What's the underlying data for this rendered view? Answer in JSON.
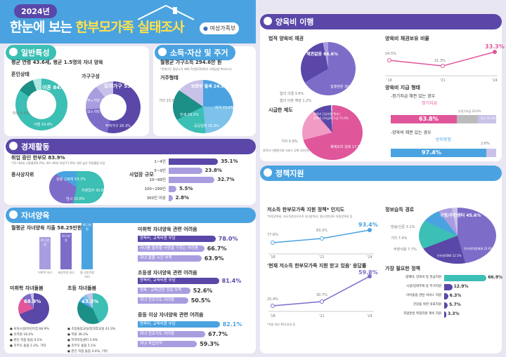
{
  "header": {
    "year": "2024년",
    "title_a": "한눈에 보는",
    "title_b": "한부모가족 실태조사",
    "ministry": "여성가족부"
  },
  "general": {
    "section": "일반특성",
    "summary": "평균 연령 43.6세, 평균 1.5명의 자녀 양육",
    "marital_title": "혼인상태",
    "divorce": "이혼 84.2%",
    "bereaved": "사별 10.4%",
    "unmarried": "미혼 5.4%",
    "family_title": "가구구성",
    "mother": "모자가구 53.5%",
    "father": "부자가구 20.3%",
    "mother_other": "모+기타 15.2%",
    "father_other": "부+기타 11.0%"
  },
  "income": {
    "section": "소득·자산 및 주거",
    "summary": "월평균 가구소득 294.6만 원",
    "note": "*전체가구 평균소득 486.7만원(2024년 가계금융·복지조사)",
    "housing_title": "거주형태",
    "jeonse": "보증부 월세 24.9%",
    "own": "자가 23.6%",
    "rent": "전세 19.1%",
    "public": "공공임대 16.9%",
    "other": "기타 15.5%"
  },
  "economy": {
    "section": "경제활동",
    "summary": "취업 중인 한부모 83.9%",
    "note": "*15~64세 고용률(69.2%), 40~49세 여성(71.0%) 대비 높은 취업률을 보임",
    "status_title": "종사상지위",
    "regular": "상용 근로자 53.3%",
    "self": "자영업자 30.8%",
    "temp": "임시 15.8%",
    "size_title": "사업장 규모",
    "sizes": [
      {
        "label": "1~4인",
        "value": "35.1%",
        "pct": 35.1
      },
      {
        "label": "5~9인",
        "value": "23.8%",
        "pct": 23.8
      },
      {
        "label": "10~99인",
        "value": "32.7%",
        "pct": 32.7
      },
      {
        "label": "100~299인",
        "value": "5.5%",
        "pct": 5.5
      },
      {
        "label": "300인 이상",
        "value": "2.8%",
        "pct": 2.8
      }
    ]
  },
  "child": {
    "section": "자녀양육",
    "summary": "월평균 자녀양육 지출 58.25만원",
    "cols": [
      {
        "label": "미취학 자녀",
        "value": "45.1만원",
        "h": 46
      },
      {
        "label": "초등학생 자녀",
        "value": "50.5만원",
        "h": 52
      },
      {
        "label": "중·고등학생 자녀",
        "value": "66.1만원",
        "h": 68
      }
    ],
    "pre_title": "미취학 자녀돌봄",
    "pre_main": "68.9%",
    "pre_items": [
      "보육시설/어린이집 68.9%",
      "유치원 18.2%",
      "본인 직접 돌봄 9.5%",
      "조부모 돌봄 2.2%, 기타"
    ],
    "elem_title": "초등 자녀돌봄",
    "elem_main": "43.3%",
    "elem_items": [
      "초등돌봄교실/방과후교실 43.3%",
      "학원 39.2%",
      "지역아동센터 5.9%",
      "조부모 돌봄 5.1%",
      "본인 직접 돌봄 4.4%, 기타"
    ],
    "diff_pre_title": "미취학 자녀양육 관련 어려움",
    "diff_pre": [
      {
        "label": "양육비, 교육비용 부담",
        "value": "78.0%",
        "pct": 78.0
      },
      {
        "label": "자녀를 돌봐줄 사람을 구하는 어려움",
        "value": "66.7%",
        "pct": 66.7
      },
      {
        "label": "자녀 돌볼 시간 부족",
        "value": "63.9%",
        "pct": 63.9
      }
    ],
    "diff_elem_title": "초등생 자녀양육 관련 어려움",
    "diff_elem": [
      {
        "label": "양육비, 교육비용 부담",
        "value": "81.4%",
        "pct": 81.4
      },
      {
        "label": "양육 · 교육관련 정보 부족",
        "value": "52.6%",
        "pct": 52.6
      },
      {
        "label": "자녀 진로지도 어려움",
        "value": "50.5%",
        "pct": 50.5
      }
    ],
    "diff_mid_title": "중등 이상 자녀양육 관련 어려움",
    "diff_mid": [
      {
        "label": "양육비, 교육비용 부담",
        "value": "82.1%",
        "pct": 82.1
      },
      {
        "label": "자녀 진로지도 어려움",
        "value": "67.7%",
        "pct": 67.7
      },
      {
        "label": "자녀 학업성적",
        "value": "59.3%",
        "pct": 59.3
      }
    ]
  },
  "support": {
    "section": "양육비 이행",
    "legal_title": "법적 양육비 채권",
    "legal_main": "채권없음 66.6%",
    "legal_b": "집행권원 30.2%",
    "legal_c": "합의 의결 3.6%",
    "legal_d": "협의 이혼 채권 1.2%",
    "claim_title": "양육비 채권보유 비율",
    "claim_vals": [
      "24.5%",
      "21.3%",
      "33.3%"
    ],
    "claim_years": [
      "'18",
      "'21",
      "'24"
    ],
    "system_title": "시급한 제도",
    "system_main": "양육비 긴급지원 확대 /\n양육비 선지급제 도입 71.0%",
    "system_b": "제재조치 강화 17.5%",
    "system_c": "양육비 이행관리원 서비스 강화 10.6%",
    "system_d": "기타 0.9%",
    "pay_title": "양육비 지급 형태",
    "pay_sub1": "-정기지급 채권 있는 경우",
    "pay_regular": "정기지급",
    "pay_regular_val": "63.8%",
    "pay_irregular": "부정기지급 20.0%",
    "pay_none": "일시 16.2%",
    "pay_sub2": "-양육비 채권 있는 경우",
    "pay_unpaid": "받지못함",
    "pay_unpaid_val": "97.4%",
    "pay_other": "2.6%",
    "pay_side": "받지못함\n정기지급 비율"
  },
  "policy": {
    "section": "정책지원",
    "aware_title": "저소득 한부모가족 지원 정책* 인지도",
    "aware_note": "*아동양육비, 저소득한부모가족 자녀양육비, 청소년한부모 아동양육비 등",
    "aware_vals": [
      "77.6%",
      "83.3%",
      "93.4%"
    ],
    "aware_years": [
      "'18",
      "'21",
      "'24"
    ],
    "recv_title": "'현재 저소득 한부모가족 지원 받고 있음' 응답률",
    "recv_vals": [
      "25.4%",
      "30.7%",
      "59.8%"
    ],
    "recv_years": [
      "'18",
      "'21",
      "'24"
    ],
    "recv_note": "*지원 대상 확대 효과 등",
    "info_title": "정보습득 경로",
    "info_main": "구청/주민센터 45.6%",
    "info_b": "인터넷/대중매체 23.6%",
    "info_c": "인터넷/SNS 12.5%",
    "info_d": "주변사람 7.7%",
    "info_e": "기타 7.4%",
    "info_f": "방송/신문 3.1%",
    "need_title": "가장 필요한 정책",
    "needs": [
      {
        "label": "생계비, 양육비 등 현금지원",
        "value": "66.9%",
        "pct": 66.9
      },
      {
        "label": "시설/임대주택 등 주거지원",
        "value": "12.9%",
        "pct": 12.9
      },
      {
        "label": "아이돌봄 관련 서비스 지원",
        "value": "6.3%",
        "pct": 6.3
      },
      {
        "label": "건강을 위한 의료지원",
        "value": "5.7%",
        "pct": 5.7
      },
      {
        "label": "직업훈련 취업지원 계속 지원",
        "value": "3.3%",
        "pct": 3.3
      }
    ]
  },
  "colors": {
    "blue": "#4aa3e0",
    "purple": "#5a47a8",
    "pink": "#e0569b",
    "teal": "#3cbfb5",
    "yellow": "#ffe14d",
    "lav": "#c9c2e8"
  }
}
